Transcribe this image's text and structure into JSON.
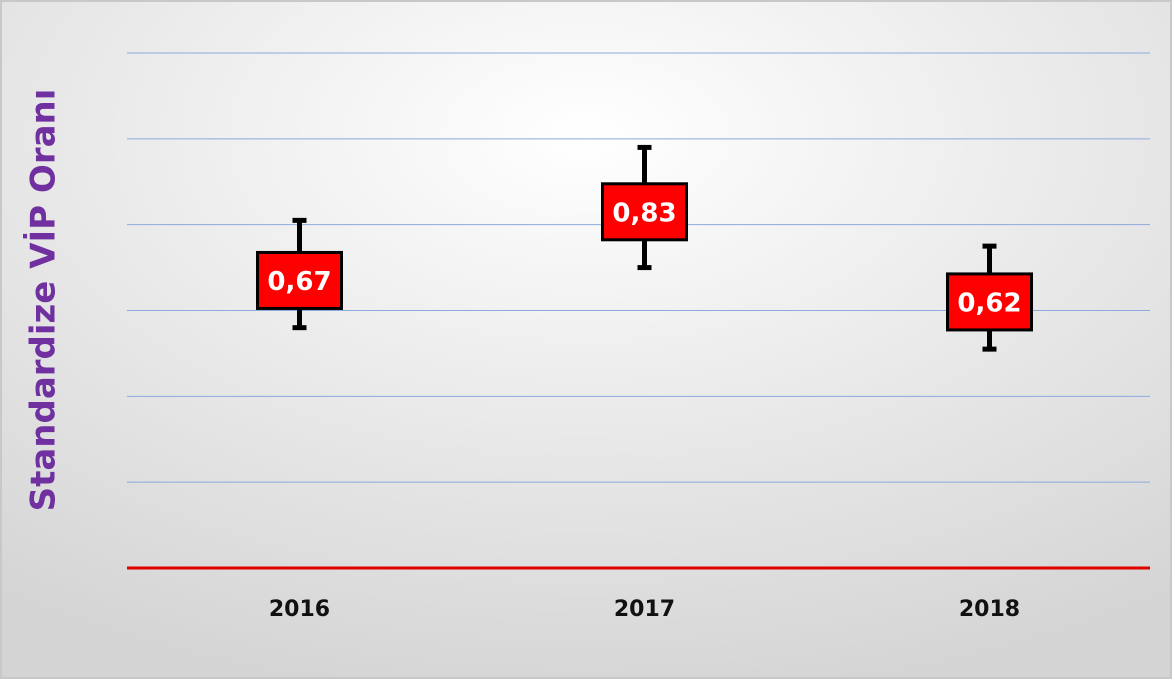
{
  "chart_data": {
    "type": "errorbar",
    "ylabel": "Standardize VİP Oranı",
    "categories": [
      "2016",
      "2017",
      "2018"
    ],
    "values": [
      0.67,
      0.83,
      0.62
    ],
    "value_labels": [
      "0,67",
      "0,83",
      "0,62"
    ],
    "lower": [
      0.56,
      0.7,
      0.51
    ],
    "upper": [
      0.81,
      0.98,
      0.75
    ],
    "color": "#ff0000",
    "ylim": [
      0,
      1.2
    ],
    "yticks": [
      0,
      0.2,
      0.4,
      0.6,
      0.8,
      1.0,
      1.2
    ],
    "grid": true,
    "grid_color": "#8ea9db",
    "baseline_color": "#e00000"
  }
}
